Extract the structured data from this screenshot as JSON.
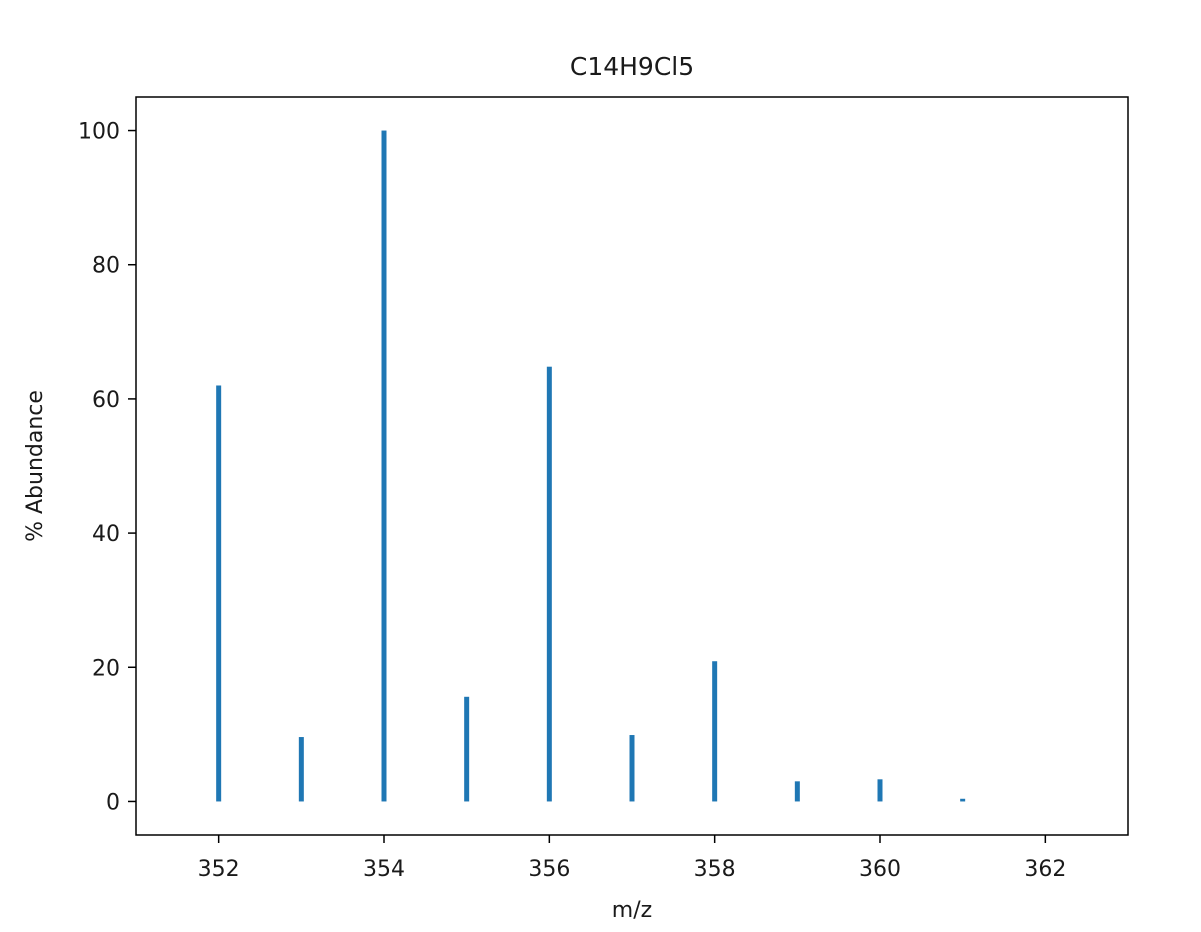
{
  "chart_data": {
    "type": "bar",
    "title": "C14H9Cl5",
    "xlabel": "m/z",
    "ylabel": "% Abundance",
    "xlim": [
      351.0,
      363.0
    ],
    "ylim": [
      -5,
      105
    ],
    "xticks": [
      352,
      354,
      356,
      358,
      360,
      362
    ],
    "yticks": [
      0,
      20,
      40,
      60,
      80,
      100
    ],
    "x": [
      352,
      353,
      354,
      355,
      356,
      357,
      358,
      359,
      360,
      361
    ],
    "values": [
      62.0,
      9.6,
      100.0,
      15.6,
      64.8,
      9.9,
      20.9,
      3.0,
      3.3,
      0.4
    ],
    "grid": false,
    "bar_color": "#1f77b4"
  }
}
